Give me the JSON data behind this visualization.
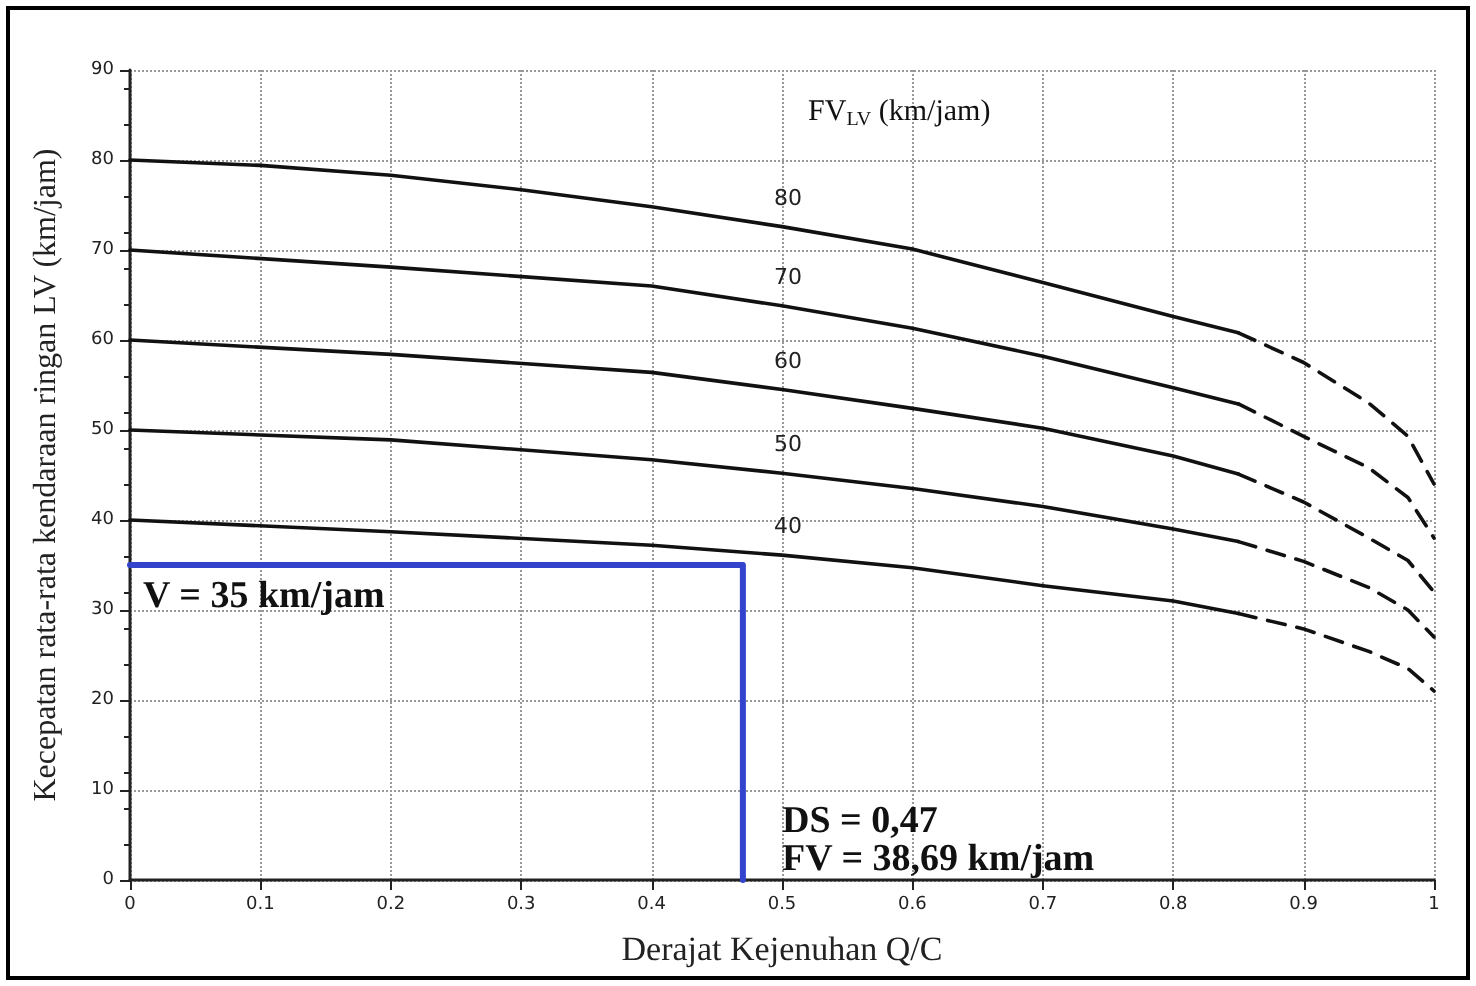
{
  "chart_data": {
    "type": "line",
    "xlabel": "Derajat Kejenuhan Q/C",
    "ylabel": "Kecepatan rata-rata kendaraan ringan LV (km/jam)",
    "legend_title": "FV$_{LV}$ (km/jam)",
    "xlim": [
      0,
      1
    ],
    "ylim": [
      0,
      90
    ],
    "xticks": [
      0,
      0.1,
      0.2,
      0.3,
      0.4,
      0.5,
      0.6,
      0.7,
      0.8,
      0.9,
      1
    ],
    "yticks": [
      0,
      10,
      20,
      30,
      40,
      50,
      60,
      70,
      80,
      90
    ],
    "grid": true,
    "legend": false,
    "marker": "none",
    "series": [
      {
        "name": "80",
        "color": "#111111",
        "line_style": "solid",
        "x": [
          0,
          0.1,
          0.2,
          0.3,
          0.4,
          0.5,
          0.6,
          0.7,
          0.8,
          0.85
        ],
        "values": [
          80,
          79.4,
          78.3,
          76.7,
          74.8,
          72.6,
          70.1,
          66.4,
          62.6,
          60.8
        ]
      },
      {
        "color": "#111111",
        "line_style": "dashed",
        "x": [
          0.85,
          0.9,
          0.95,
          0.98,
          1
        ],
        "values": [
          60.8,
          57.5,
          53,
          49.3,
          44
        ]
      },
      {
        "name": "70",
        "color": "#111111",
        "line_style": "solid",
        "x": [
          0,
          0.2,
          0.4,
          0.5,
          0.6,
          0.7,
          0.8,
          0.85
        ],
        "values": [
          70,
          68.1,
          66,
          63.8,
          61.3,
          58.2,
          54.7,
          52.9
        ]
      },
      {
        "color": "#111111",
        "line_style": "dashed",
        "x": [
          0.85,
          0.9,
          0.95,
          0.98,
          1
        ],
        "values": [
          52.9,
          49.3,
          45.8,
          42.5,
          38
        ]
      },
      {
        "name": "60",
        "color": "#111111",
        "line_style": "solid",
        "x": [
          0,
          0.2,
          0.4,
          0.5,
          0.6,
          0.7,
          0.8,
          0.85
        ],
        "values": [
          60,
          58.4,
          56.4,
          54.5,
          52.4,
          50.2,
          47.1,
          45.1
        ]
      },
      {
        "color": "#111111",
        "line_style": "dashed",
        "x": [
          0.85,
          0.9,
          0.95,
          0.98,
          1
        ],
        "values": [
          45.1,
          42,
          38,
          35.5,
          32
        ]
      },
      {
        "name": "50",
        "color": "#111111",
        "line_style": "solid",
        "x": [
          0,
          0.2,
          0.4,
          0.5,
          0.6,
          0.7,
          0.8,
          0.85
        ],
        "values": [
          50,
          48.9,
          46.7,
          45.2,
          43.5,
          41.5,
          39,
          37.6
        ]
      },
      {
        "color": "#111111",
        "line_style": "dashed",
        "x": [
          0.85,
          0.9,
          0.95,
          0.98,
          1
        ],
        "values": [
          37.6,
          35.4,
          32.5,
          30,
          27
        ]
      },
      {
        "name": "40",
        "color": "#111111",
        "line_style": "solid",
        "x": [
          0,
          0.2,
          0.4,
          0.5,
          0.6,
          0.7,
          0.8,
          0.85
        ],
        "values": [
          40,
          38.7,
          37.2,
          36.1,
          34.7,
          32.7,
          31,
          29.6
        ]
      },
      {
        "color": "#111111",
        "line_style": "dashed",
        "x": [
          0.85,
          0.9,
          0.95,
          0.98,
          1
        ],
        "values": [
          29.6,
          27.9,
          25.4,
          23.5,
          21
        ]
      },
      {
        "color": "#3344cc",
        "line_style": "solid",
        "x": [
          0,
          0.47,
          0.47
        ],
        "values": [
          35,
          35,
          0
        ]
      }
    ],
    "annotations": [
      "V = 35 km/jam",
      "DS = 0,47",
      "FV = 38,69 km/jam"
    ]
  }
}
